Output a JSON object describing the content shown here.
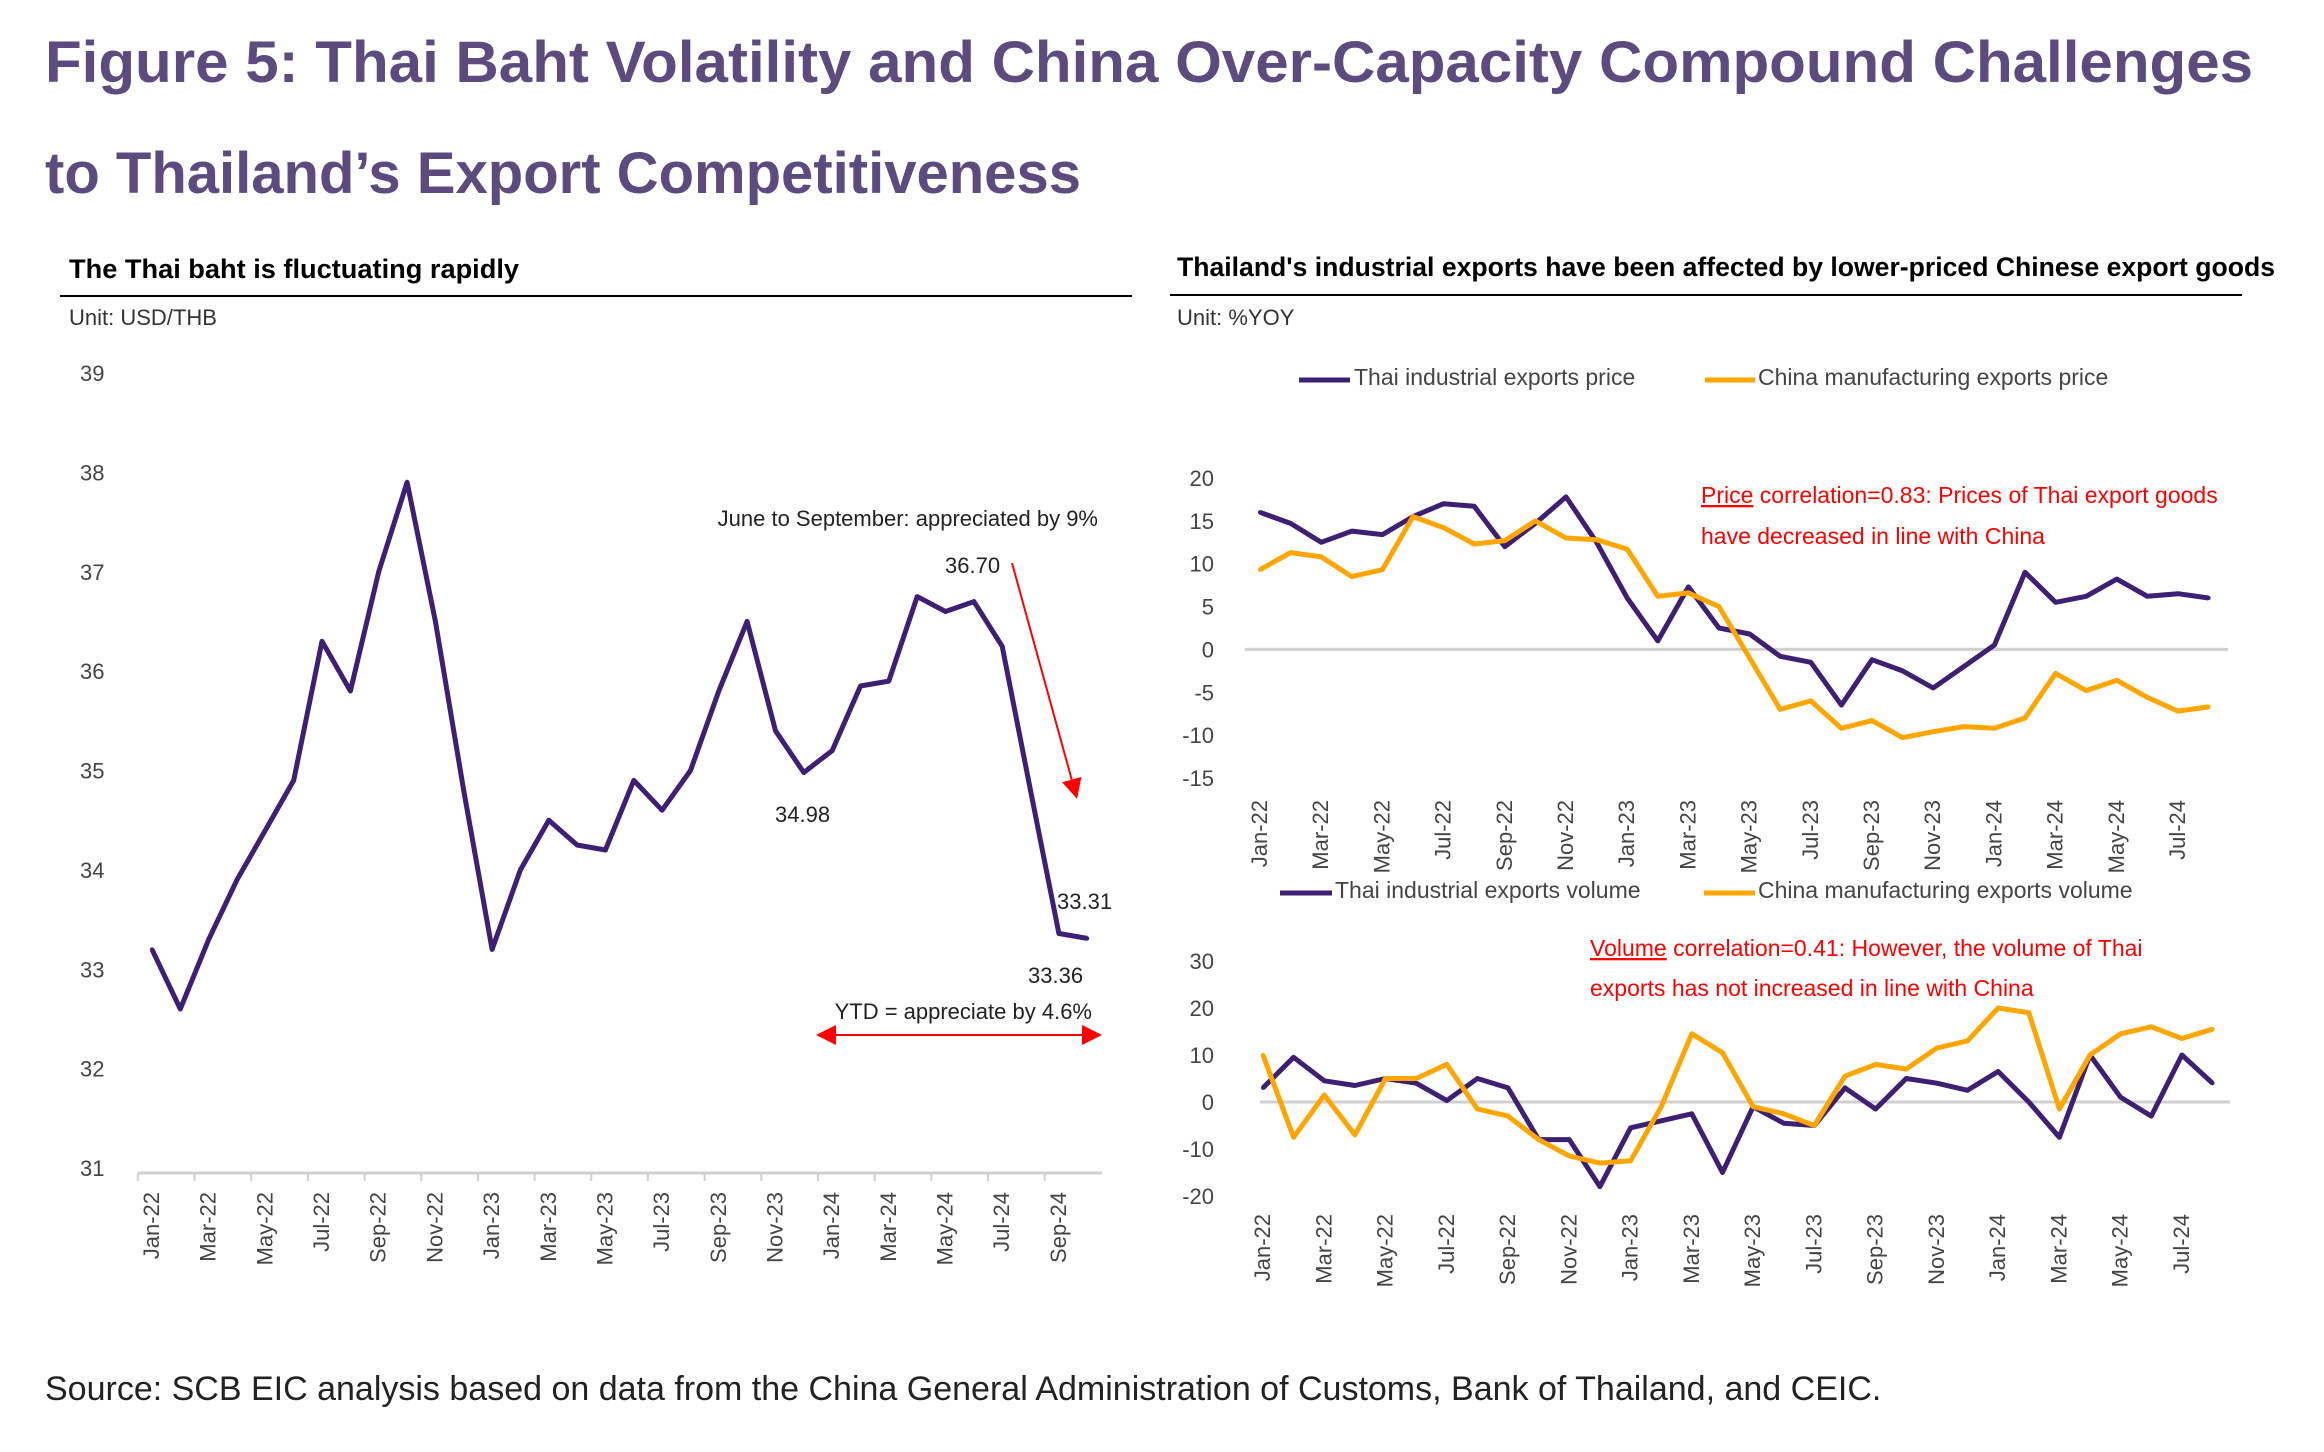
{
  "figure": {
    "title_line1": "Figure 5: Thai Baht Volatility and China Over-Capacity Compound Challenges",
    "title_line2": "to Thailand’s Export Competitiveness",
    "source": "Source: SCB EIC analysis based on data from the China General Administration of Customs, Bank of Thailand, and CEIC."
  },
  "colors": {
    "title": "#5b4b7e",
    "thai": "#3d1f73",
    "china": "#ffa500",
    "annotation": "#ff0000"
  },
  "chart_data": [
    {
      "type": "line",
      "title": "The Thai baht is fluctuating rapidly",
      "unit": "Unit: USD/THB",
      "ylim": [
        31,
        39
      ],
      "yticks": [
        31,
        32,
        33,
        34,
        35,
        36,
        37,
        38,
        39
      ],
      "xtick_labels": [
        "Jan-22",
        "Mar-22",
        "May-22",
        "Jul-22",
        "Sep-22",
        "Nov-22",
        "Jan-23",
        "Mar-23",
        "May-23",
        "Jul-23",
        "Sep-23",
        "Nov-23",
        "Jan-24",
        "Mar-24",
        "May-24",
        "Jul-24",
        "Sep-24"
      ],
      "x": [
        "Jan-22",
        "Feb-22",
        "Mar-22",
        "Apr-22",
        "May-22",
        "Jun-22",
        "Jul-22",
        "Aug-22",
        "Sep-22",
        "Oct-22",
        "Nov-22",
        "Dec-22",
        "Jan-23",
        "Feb-23",
        "Mar-23",
        "Apr-23",
        "May-23",
        "Jun-23",
        "Jul-23",
        "Aug-23",
        "Sep-23",
        "Oct-23",
        "Nov-23",
        "Dec-23",
        "Jan-24",
        "Feb-24",
        "Mar-24",
        "Apr-24",
        "May-24",
        "Jun-24",
        "Jul-24",
        "Aug-24",
        "Sep-24",
        "Oct-24"
      ],
      "series": [
        {
          "values": [
            33.2,
            32.6,
            33.3,
            33.9,
            34.4,
            34.9,
            36.3,
            35.8,
            37.0,
            37.9,
            36.5,
            34.8,
            33.2,
            34.0,
            34.5,
            34.25,
            34.2,
            34.9,
            34.6,
            35.0,
            35.8,
            36.5,
            35.4,
            34.98,
            35.2,
            35.85,
            35.9,
            36.75,
            36.6,
            36.7,
            36.25,
            34.8,
            33.36,
            33.31
          ]
        }
      ],
      "annotations": {
        "june_sep": "June to September: appreciated by 9%",
        "peak": "36.70",
        "low": "34.98",
        "last_a": "33.31",
        "last_b": "33.36",
        "ytd": "YTD = appreciate by 4.6%"
      },
      "grid": false
    },
    {
      "type": "line",
      "title": "Thailand's industrial exports have been affected by lower-priced Chinese export goods",
      "unit": "Unit: %YOY",
      "ylim": [
        -15,
        20
      ],
      "yticks": [
        -15,
        -10,
        -5,
        0,
        5,
        10,
        15,
        20
      ],
      "xtick_labels": [
        "Jan-22",
        "Mar-22",
        "May-22",
        "Jul-22",
        "Sep-22",
        "Nov-22",
        "Jan-23",
        "Mar-23",
        "May-23",
        "Jul-23",
        "Sep-23",
        "Nov-23",
        "Jan-24",
        "Mar-24",
        "May-24",
        "Jul-24"
      ],
      "legend": "top",
      "series": [
        {
          "name": "Thai industrial exports price",
          "values": [
            16,
            14.7,
            12.5,
            13.8,
            13.4,
            15.5,
            17,
            16.7,
            12,
            14.7,
            17.8,
            12.5,
            6,
            1,
            7.3,
            2.5,
            1.8,
            -0.8,
            -1.5,
            -6.5,
            -1.2,
            -2.5,
            -4.5,
            -2,
            0.5,
            9,
            5.5,
            6.2,
            8.2,
            6.2,
            6.5,
            6
          ]
        },
        {
          "name": "China manufacturing exports price",
          "values": [
            9.3,
            11.3,
            10.8,
            8.5,
            9.3,
            15.5,
            14.2,
            12.3,
            12.7,
            15,
            13,
            12.8,
            11.7,
            6.2,
            6.6,
            5,
            -1,
            -7,
            -6,
            -9.2,
            -8.3,
            -10.3,
            -9.6,
            -9,
            -9.2,
            -8,
            -2.8,
            -4.8,
            -3.6,
            -5.6,
            -7.2,
            -6.7
          ]
        }
      ],
      "annotation_key": "Price",
      "annotation_rest1": " correlation=0.83: Prices of Thai export goods",
      "annotation_line2": "have decreased in line with China"
    },
    {
      "type": "line",
      "ylim": [
        -20,
        30
      ],
      "yticks": [
        -20,
        -10,
        0,
        10,
        20,
        30
      ],
      "xtick_labels": [
        "Jan-22",
        "Mar-22",
        "May-22",
        "Jul-22",
        "Sep-22",
        "Nov-22",
        "Jan-23",
        "Mar-23",
        "May-23",
        "Jul-23",
        "Sep-23",
        "Nov-23",
        "Jan-24",
        "Mar-24",
        "May-24",
        "Jul-24"
      ],
      "legend": "top",
      "series": [
        {
          "name": "Thai industrial exports volume",
          "values": [
            3,
            9.5,
            4.5,
            3.5,
            5,
            4,
            0.3,
            5,
            3,
            -8,
            -8,
            -18,
            -5.5,
            -4,
            -2.5,
            -15,
            -1,
            -4.5,
            -5,
            3,
            -1.5,
            5,
            4,
            2.5,
            6.5,
            0,
            -7.5,
            10,
            1,
            -3,
            10,
            4
          ]
        },
        {
          "name": "China manufacturing exports volume",
          "values": [
            10,
            -7.5,
            1.5,
            -7,
            5,
            5,
            8,
            -1.5,
            -3,
            -8,
            -11.5,
            -13,
            -12.5,
            -1,
            14.5,
            10.5,
            -1,
            -2.5,
            -5,
            5.5,
            8,
            7,
            11.5,
            13,
            20,
            19,
            -1.5,
            10,
            14.5,
            16,
            13.5,
            15.5
          ]
        }
      ],
      "annotation_key": "Volume",
      "annotation_rest1": " correlation=0.41: However, the volume of Thai",
      "annotation_line2": "exports has not increased in line with China"
    }
  ]
}
